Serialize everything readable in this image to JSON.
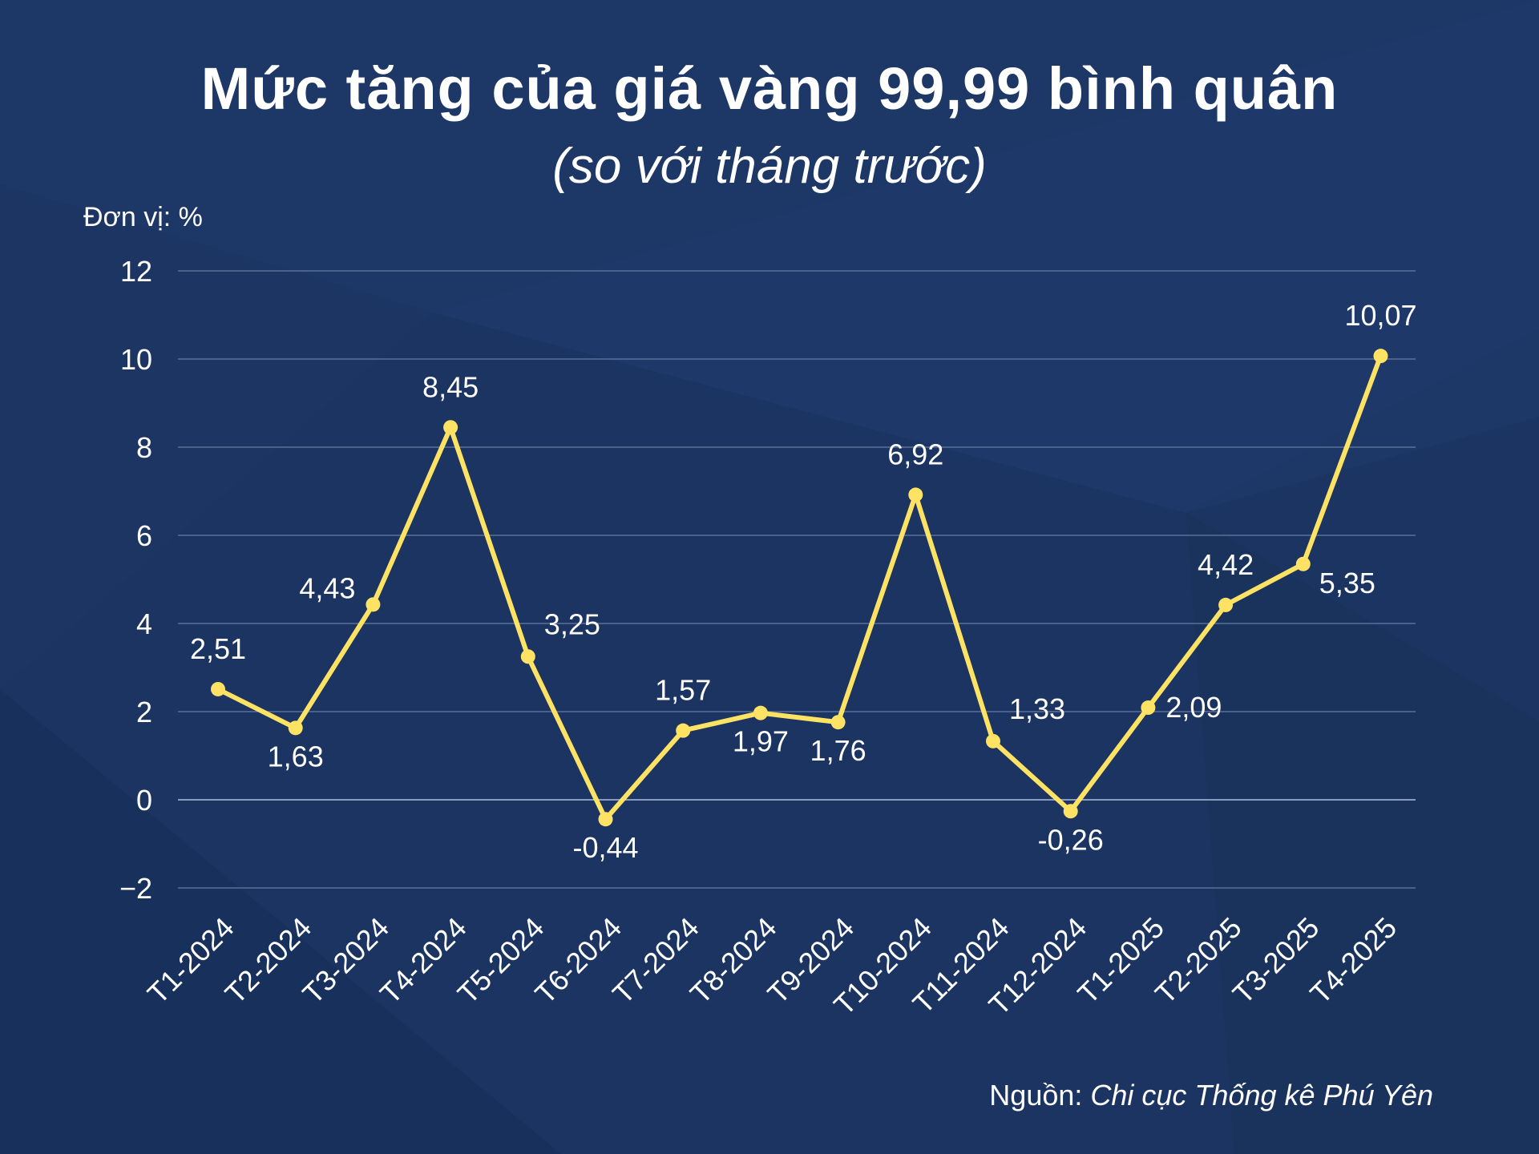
{
  "title": "Mức tăng của giá vàng 99,99 bình quân",
  "subtitle": "(so với tháng trước)",
  "unit_label": "Đơn vị: %",
  "source": {
    "prefix": "Nguồn: ",
    "name": "Chi cục Thống kê Phú Yên"
  },
  "colors": {
    "background": "#1b3461",
    "line": "#fde264",
    "grid": "#5a7099",
    "text": "#ffffff"
  },
  "chart_data": {
    "type": "line",
    "categories": [
      "T1-2024",
      "T2-2024",
      "T3-2024",
      "T4-2024",
      "T5-2024",
      "T6-2024",
      "T7-2024",
      "T8-2024",
      "T9-2024",
      "T10-2024",
      "T11-2024",
      "T12-2024",
      "T1-2025",
      "T2-2025",
      "T3-2025",
      "T4-2025"
    ],
    "values": [
      2.51,
      1.63,
      4.43,
      8.45,
      3.25,
      -0.44,
      1.57,
      1.97,
      1.76,
      6.92,
      1.33,
      -0.26,
      2.09,
      4.42,
      5.35,
      10.07
    ],
    "data_labels": [
      "2,51",
      "1,63",
      "4,43",
      "8,45",
      "3,25",
      "-0,44",
      "1,57",
      "1,97",
      "1,76",
      "6,92",
      "1,33",
      "-0,26",
      "2,09",
      "4,42",
      "5,35",
      "10,07"
    ],
    "yticks": [
      12,
      10,
      8,
      6,
      4,
      2,
      0,
      -2
    ],
    "ytick_labels": [
      "12",
      "10",
      "8",
      "6",
      "4",
      "2",
      "0",
      "−2"
    ],
    "ylim": [
      -2,
      12
    ],
    "grid": true,
    "legend": "none"
  }
}
